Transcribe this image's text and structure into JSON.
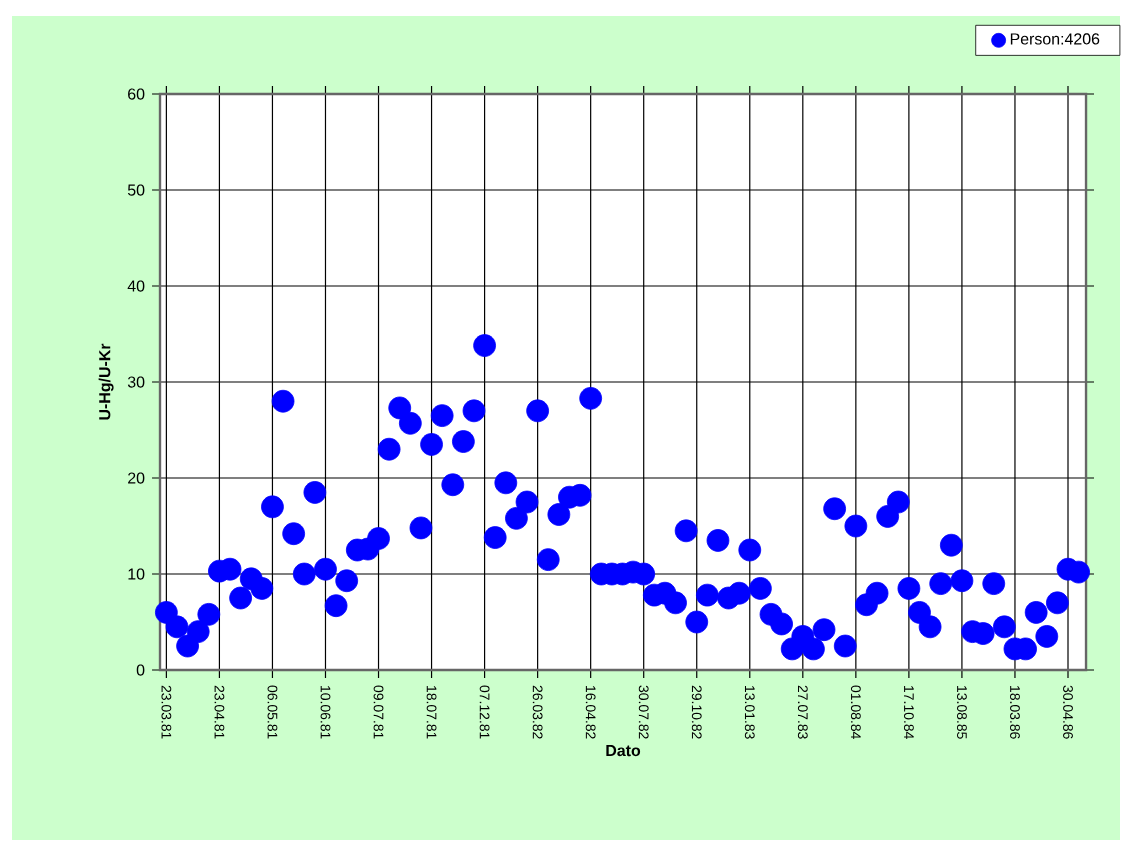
{
  "chart_data": {
    "type": "scatter",
    "xlabel": "Dato",
    "ylabel": "U-Hg/U-Kr",
    "categories": [
      "23.03.81",
      null,
      null,
      null,
      null,
      "23.04.81",
      null,
      null,
      null,
      null,
      "06.05.81",
      null,
      null,
      null,
      null,
      "10.06.81",
      null,
      null,
      null,
      null,
      "09.07.81",
      null,
      null,
      null,
      null,
      "18.07.81",
      null,
      null,
      null,
      null,
      "07.12.81",
      null,
      null,
      null,
      null,
      "26.03.82",
      null,
      null,
      null,
      null,
      "16.04.82",
      null,
      null,
      null,
      null,
      "30.07.82",
      null,
      null,
      null,
      null,
      "29.10.82",
      null,
      null,
      null,
      null,
      "13.01.83",
      null,
      null,
      null,
      null,
      "27.07.83",
      null,
      null,
      null,
      null,
      "01.08.84",
      null,
      null,
      null,
      null,
      "17.10.84",
      null,
      null,
      null,
      null,
      "13.08.85",
      null,
      null,
      null,
      null,
      "18.03.86",
      null,
      null,
      null,
      null,
      "30.04.86",
      null
    ],
    "series": [
      {
        "name": "Person:4206",
        "color": "#0000ff",
        "values": [
          6,
          4.5,
          2.5,
          4,
          5.8,
          10.3,
          10.5,
          7.5,
          9.5,
          8.5,
          17,
          28,
          14.2,
          10,
          18.5,
          10.5,
          6.7,
          9.3,
          12.5,
          12.6,
          13.7,
          23,
          27.3,
          25.7,
          14.8,
          23.5,
          26.5,
          19.3,
          23.8,
          27,
          33.8,
          13.8,
          19.5,
          15.8,
          17.5,
          27,
          11.5,
          16.2,
          18,
          18.2,
          28.3,
          10,
          10,
          10,
          10.2,
          10,
          7.8,
          8,
          7,
          14.5,
          5,
          7.8,
          13.5,
          7.5,
          8,
          12.5,
          8.5,
          5.8,
          4.8,
          2.2,
          3.5,
          2.2,
          4.2,
          16.8,
          2.5,
          15,
          6.8,
          8,
          16,
          17.5,
          8.5,
          6,
          4.5,
          9,
          13,
          9.3,
          4,
          3.8,
          9,
          4.5,
          2.2,
          2.2,
          6,
          3.5,
          7,
          10.5,
          10.2
        ]
      }
    ],
    "ylim": [
      0,
      60
    ],
    "yticks": [
      0,
      10,
      20,
      30,
      40,
      50,
      60
    ],
    "grid": true,
    "legend": "top right",
    "marker": "circle"
  }
}
